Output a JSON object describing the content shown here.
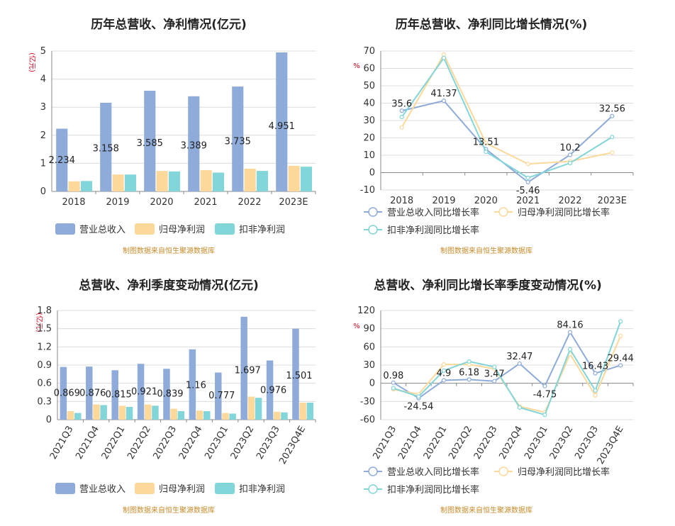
{
  "colors": {
    "revenue": "#8eabd9",
    "net_profit": "#fcd89a",
    "deducted_profit": "#82d5d8",
    "source_text": "#c58b2b",
    "unit_text": "#d0021b"
  },
  "source_text": "制图数据来自恒生聚源数据库",
  "chart_data": [
    {
      "type": "bar",
      "title": "历年总营收、净利情况(亿元)",
      "ylabel": "(亿元)",
      "categories": [
        "2018",
        "2019",
        "2020",
        "2021",
        "2022",
        "2023E"
      ],
      "ylim": [
        0,
        5
      ],
      "yticks": [
        "0",
        "1",
        "2",
        "3",
        "4",
        "5"
      ],
      "series": [
        {
          "name": "营业总收入",
          "values": [
            2.234,
            3.158,
            3.585,
            3.389,
            3.735,
            4.951
          ]
        },
        {
          "name": "归母净利润",
          "values": [
            0.36,
            0.6,
            0.73,
            0.76,
            0.81,
            0.91
          ]
        },
        {
          "name": "扣非净利润",
          "values": [
            0.37,
            0.6,
            0.71,
            0.67,
            0.73,
            0.88
          ]
        }
      ],
      "data_labels": [
        "2.234",
        "3.158",
        "3.585",
        "3.389",
        "3.735",
        "4.951"
      ],
      "legend": "bottom",
      "grid": true
    },
    {
      "type": "line",
      "title": "历年总营收、净利同比增长情况(%)",
      "ylabel": "%",
      "categories": [
        "2018",
        "2019",
        "2020",
        "2021",
        "2022",
        "2023E"
      ],
      "ylim": [
        -10,
        70
      ],
      "yticks": [
        "-10",
        "0",
        "10",
        "20",
        "30",
        "40",
        "50",
        "60",
        "70"
      ],
      "series": [
        {
          "name": "营业总收入同比增长率",
          "values": [
            35.6,
            41.37,
            13.51,
            -5.46,
            10.2,
            32.56
          ]
        },
        {
          "name": "归母净利润同比增长率",
          "values": [
            26.0,
            68.0,
            17.0,
            5.0,
            6.5,
            11.5
          ]
        },
        {
          "name": "扣非净利润同比增长率",
          "values": [
            32.0,
            66.0,
            12.0,
            -3.0,
            5.5,
            20.5
          ]
        }
      ],
      "data_labels": [
        "35.6",
        "41.37",
        "13.51",
        "-5.46",
        "10.2",
        "32.56"
      ],
      "legend": "bottom",
      "grid": true
    },
    {
      "type": "bar",
      "title": "总营收、净利季度变动情况(亿元)",
      "ylabel": "(亿元)",
      "categories": [
        "2021Q3",
        "2021Q4",
        "2022Q1",
        "2022Q2",
        "2022Q3",
        "2022Q4",
        "2023Q1",
        "2023Q2",
        "2023Q3",
        "2023Q4E"
      ],
      "ylim": [
        0,
        1.8
      ],
      "yticks": [
        "0",
        "0.3",
        "0.6",
        "0.9",
        "1.2",
        "1.5",
        "1.8"
      ],
      "series": [
        {
          "name": "营业总收入",
          "values": [
            0.869,
            0.876,
            0.815,
            0.921,
            0.839,
            1.16,
            0.777,
            1.697,
            0.976,
            1.501
          ]
        },
        {
          "name": "归母净利润",
          "values": [
            0.14,
            0.25,
            0.23,
            0.25,
            0.18,
            0.15,
            0.11,
            0.38,
            0.13,
            0.28
          ]
        },
        {
          "name": "扣非净利润",
          "values": [
            0.11,
            0.24,
            0.21,
            0.23,
            0.14,
            0.14,
            0.1,
            0.36,
            0.12,
            0.28
          ]
        }
      ],
      "data_labels": [
        "0.869",
        "0.876",
        "0.815",
        "0.921",
        "0.839",
        "1.16",
        "0.777",
        "1.697",
        "0.976",
        "1.501"
      ],
      "legend": "bottom",
      "grid": true
    },
    {
      "type": "line",
      "title": "总营收、净利同比增长率季度变动情况(%)",
      "ylabel": "%",
      "categories": [
        "2021Q3",
        "2021Q4",
        "2022Q1",
        "2022Q2",
        "2022Q3",
        "2022Q4",
        "2023Q1",
        "2023Q2",
        "2023Q3",
        "2023Q4E"
      ],
      "ylim": [
        -60,
        120
      ],
      "yticks": [
        "-60",
        "-30",
        "0",
        "30",
        "60",
        "90",
        "120"
      ],
      "series": [
        {
          "name": "营业总收入同比增长率",
          "values": [
            0.98,
            -24.54,
            4.9,
            6.18,
            3.47,
            32.47,
            -4.75,
            84.16,
            16.43,
            29.44
          ]
        },
        {
          "name": "归母净利润同比增长率",
          "values": [
            -10,
            -18,
            31,
            31,
            24,
            -38,
            -48,
            48,
            -20,
            78
          ]
        },
        {
          "name": "扣非净利润同比增长率",
          "values": [
            -8,
            -22,
            21,
            36,
            27,
            -40,
            -52,
            56,
            -12,
            102
          ]
        }
      ],
      "data_labels": [
        "0.98",
        "-24.54",
        "4.9",
        "6.18",
        "3.47",
        "32.47",
        "-4.75",
        "84.16",
        "16.43",
        "29.44"
      ],
      "legend": "bottom",
      "grid": true
    }
  ]
}
